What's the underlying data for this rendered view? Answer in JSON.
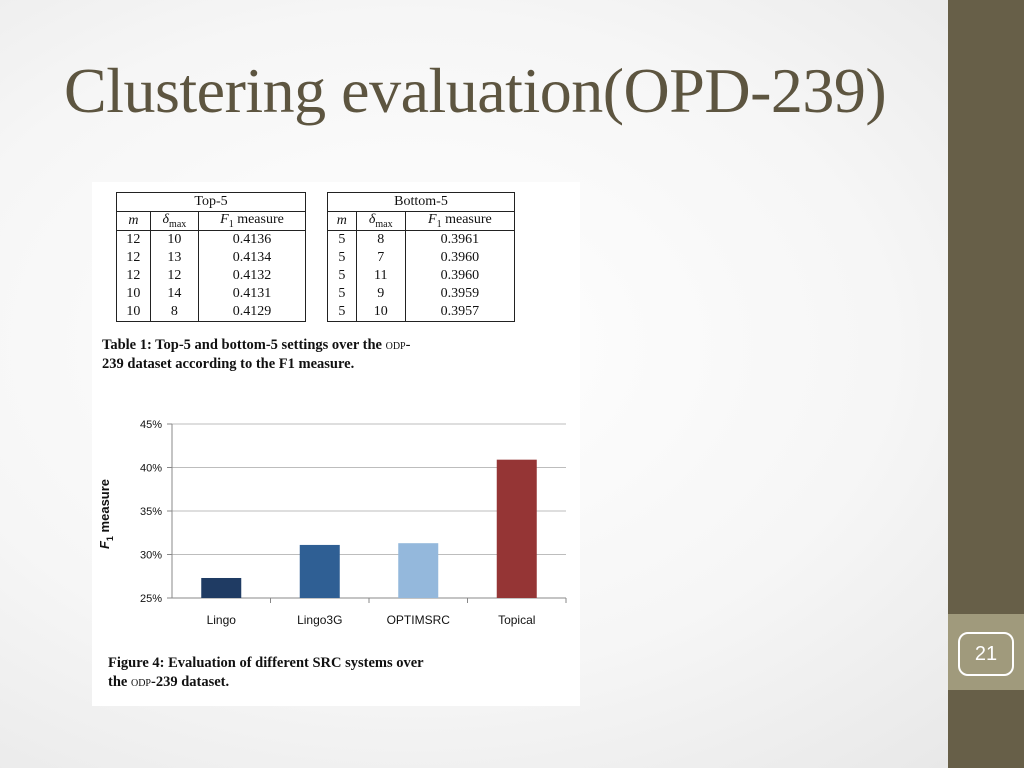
{
  "slide": {
    "title": "Clustering evaluation(OPD-239)",
    "number": "21"
  },
  "table": {
    "top": {
      "group_label": "Top-5",
      "headers": [
        "m",
        "δmax",
        "F1 measure"
      ],
      "rows": [
        [
          "12",
          "10",
          "0.4136"
        ],
        [
          "12",
          "13",
          "0.4134"
        ],
        [
          "12",
          "12",
          "0.4132"
        ],
        [
          "10",
          "14",
          "0.4131"
        ],
        [
          "10",
          "8",
          "0.4129"
        ]
      ]
    },
    "bottom": {
      "group_label": "Bottom-5",
      "headers": [
        "m",
        "δmax",
        "F1 measure"
      ],
      "rows": [
        [
          "5",
          "8",
          "0.3961"
        ],
        [
          "5",
          "7",
          "0.3960"
        ],
        [
          "5",
          "11",
          "0.3960"
        ],
        [
          "5",
          "9",
          "0.3959"
        ],
        [
          "5",
          "10",
          "0.3957"
        ]
      ]
    },
    "caption_line1": "Table 1: Top-5 and bottom-5 settings over the ",
    "caption_sc": "odp",
    "caption_line1_end": "-",
    "caption_line2": "239 dataset according to the F1 measure."
  },
  "chart_data": {
    "type": "bar",
    "categories": [
      "Lingo",
      "Lingo3G",
      "OPTIMSRC",
      "Topical"
    ],
    "values": [
      27.3,
      31.1,
      31.3,
      40.9
    ],
    "colors": [
      "#1f3b63",
      "#2f5f94",
      "#94b8dc",
      "#953535"
    ],
    "ylabel": "F1 measure",
    "ylim": [
      25,
      45
    ],
    "yticks": [
      "25%",
      "30%",
      "35%",
      "40%",
      "45%"
    ],
    "grid": true
  },
  "figure": {
    "caption_line1": "Figure 4: Evaluation of different SRC systems over",
    "caption_line2_a": "the ",
    "caption_sc": "odp",
    "caption_line2_b": "-239 dataset."
  }
}
